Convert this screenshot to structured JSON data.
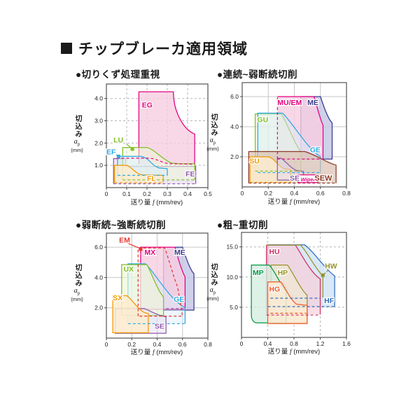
{
  "title": {
    "text": "チップブレーカ適用領域"
  },
  "chart_data": [
    {
      "type": "region-map",
      "id": "chip-control",
      "subtitle": "●切りくず処理重視",
      "xlabel": {
        "pre": "送り量",
        "it": "f",
        "post": "(mm/rev)"
      },
      "ylabel": {
        "main": "切込み",
        "sym": "a",
        "sub": "p",
        "unit": "(mm)"
      },
      "xlim": [
        0,
        0.5
      ],
      "ylim": [
        0,
        4.65
      ],
      "xticks": {
        "values": [
          0,
          0.1,
          0.2,
          0.3,
          0.4,
          0.5
        ],
        "labels": [
          "0",
          "0.1",
          "0.2",
          "0.3",
          "0.4",
          "0.5"
        ]
      },
      "yticks": {
        "values": [
          1.0,
          2.0,
          3.0,
          4.0
        ],
        "labels": [
          "1.0",
          "2.0",
          "3.0",
          "4.0"
        ]
      },
      "grid": "dashed",
      "regions": [
        {
          "name": "EG",
          "stroke": "#e4007f",
          "fill": "rgba(246,205,225,0.8)",
          "path": "M .16 1.05 L .16 4.3 L .33 4.3 C .33 3.4 .38 2.6 .435 2.4 L .435 1.05 Z",
          "spath": "M .435 1.05 L .435 2.4 C .38 2.6 .33 3.4 .33 4.3 L .16 4.3 L .16 1.05"
        },
        {
          "name": "FE",
          "stroke": "#8f5ba8",
          "fill": "rgba(228,217,238,0.65)",
          "path": "M .035 .17 L .035 1.3 L .095 1.3 L .095 .95 L .44 .95 L .44 .17 Z",
          "spath": "M .44 .17 L .44 .95 L .095 .95 L .095 1.3 L .035 1.3 L .035 .17"
        },
        {
          "name": "LU",
          "stroke": "#7fbf26",
          "fill": "rgba(238,246,215,0.55)",
          "path": "M .08 .35 L .08 1.8 L .2 1.8 C .24 1.7 .27 1.3 .32 1.1 L .36 1.07 L .435 1.07 L .435 .35 Z",
          "spath": "M .435 .35 L .435 1.07 L .36 1.07 L .32 1.1 C .27 1.3 .24 1.7 .2 1.8 L .08 1.8 L .08 .35"
        },
        {
          "name": "EF",
          "stroke": "#2ca9e1",
          "fill": "rgba(216,238,250,0.5)",
          "path": "M .055 .55 L .055 1.4 L .17 1.4 C .21 1.35 .22 1.0 .26 .88 L .3 .85 L .3 .55 Z",
          "spath": "M .3 .55 L .3 .85 L .26 .88 C .22 1.0 .21 1.35 .17 1.4 L .055 1.4 L .055 .55"
        },
        {
          "name": "FL",
          "stroke": "#f39800",
          "fill": "rgba(253,236,206,0.8)",
          "path": "M .04 .22 L .04 1.0 L .1 1.0 C .13 .9 .14 .62 .18 .57 L .28 .55 L .28 .22 Z",
          "spath": "M .28 .22 L .28 .55 L .18 .57 C .14 .62 .13 .9 .1 1.0 L .04 1.0 L .04 .22"
        }
      ],
      "extra_lines": [
        {
          "stroke": "#e4007f",
          "path": "M .05 1.32 L .21 1.32 C .25 1.3 .27 1.12 .31 1.07 L .435 1.05"
        },
        {
          "stroke": "#7fbf26",
          "path": "M .08 .35 L .435 .35"
        },
        {
          "stroke": "#2ca9e1",
          "path": "M .055 .55 L .3 .55"
        },
        {
          "stroke": "#f39800",
          "path": "M .04 .22 L .28 .22"
        },
        {
          "stroke": "#8f5ba8",
          "path": "M .035 .17 L .44 .17"
        }
      ],
      "labels": [
        {
          "text": "EG",
          "x": 0.175,
          "y": 3.6,
          "color": "#e4007f"
        },
        {
          "text": "LU",
          "x": 0.035,
          "y": 2.02,
          "color": "#7fbf26"
        },
        {
          "text": "EF",
          "x": 0.0,
          "y": 1.5,
          "color": "#2ca9e1"
        },
        {
          "text": "FL",
          "x": 0.2,
          "y": 0.3,
          "color": "#f39800"
        },
        {
          "text": "FE",
          "x": 0.39,
          "y": 0.5,
          "color": "#8f5ba8"
        }
      ],
      "leaders": [
        {
          "color": "#7fbf26",
          "x1": 0.1,
          "y1": 1.95,
          "x2": 0.125,
          "y2": 1.76,
          "marker": [
            0.128,
            1.73
          ]
        },
        {
          "color": "#2ca9e1",
          "x1": 0.048,
          "y1": 1.47,
          "x2": 0.058,
          "y2": 1.42,
          "marker": [
            0.06,
            1.4
          ]
        }
      ]
    },
    {
      "type": "region-map",
      "id": "continuous-light-interrupted",
      "subtitle": "●連続~弱断続切削",
      "xlabel": {
        "pre": "送り量",
        "it": "f",
        "post": "(mm/rev)"
      },
      "ylabel": {
        "main": "切込み",
        "sym": "a",
        "sub": "p",
        "unit": "(mm)"
      },
      "xlim": [
        0,
        0.8
      ],
      "ylim": [
        0,
        6.93
      ],
      "xticks": {
        "values": [
          0,
          0.2,
          0.4,
          0.6,
          0.8
        ],
        "labels": [
          "0",
          "0.2",
          "0.4",
          "0.6",
          "0.8"
        ]
      },
      "yticks": {
        "values": [
          2.0,
          4.0,
          6.0
        ],
        "labels": [
          "2.0",
          "4.0",
          "6.0"
        ]
      },
      "grid": "solid",
      "regions": [
        {
          "name": "ME",
          "stroke": "#3a3a8c",
          "fill": "rgba(199,200,230,0.85)",
          "path": "M .45 1.85 L .45 6.0 L .6 6.0 C .63 5.2 .66 4.5 .69 4.25 L .69 1.85 Z"
        },
        {
          "name": "MU/EM",
          "stroke": "#e4007f",
          "fill": "rgba(246,205,225,0.8)",
          "path": "M .27 1.85 L .27 6.0 L .55 6.0 C .58 5.2 .6 4.4 .62 4.1 L .62 1.85 Z",
          "spath": "M .27 6.0 L .55 6.0 C .58 5.2 .6 4.4 .62 4.1 L .62 1.85"
        },
        {
          "name": "GU",
          "stroke": "#7fbf26",
          "fill": "rgba(238,246,215,0.6)",
          "path": "M .1 1.05 L .1 4.85 L .3 4.85 C .34 4.3 .4 2.9 .45 2.3 L .45 1.05 Z",
          "spath": "M .1 1.05 L .1 4.85 L .3 4.85 C .34 4.3 .4 2.9 .45 2.3 L .45 1.05"
        },
        {
          "name": "GE",
          "stroke": "#2ca9e1",
          "fill": "rgba(216,238,250,0.45)",
          "path": "M .12 .95 L .12 4.9 L .31 4.9 C .4 4.1 .5 2.55 .6 2.0 L .6 .95 Z",
          "spath": "M .12 .95 L .12 4.9 L .31 4.9 C .4 4.1 .5 2.55 .6 2.0 L .6 .95"
        },
        {
          "name": "SEW",
          "stroke": "#8c3b28",
          "fill": "rgba(220,191,176,0.7)",
          "path": "M .05 .25 L .05 2.35 L .48 2.35 C .56 2.15 .63 1.7 .7 1.5 L .72 1.45 L .72 .25 Z",
          "spath": "M .05 .25 L .05 2.35 L .48 2.35 C .56 2.15 .63 1.7 .7 1.5 L .72 1.45 L .72 .25"
        },
        {
          "name": "SU",
          "stroke": "#f39800",
          "fill": "rgba(253,236,206,0.8)",
          "path": "M .06 .3 L .06 2.0 L .2 2.0 C .25 1.9 .27 1.4 .32 1.2 L .37 1.15 L .37 .3 Z",
          "spath": "M .06 .3 L .06 2.0 L .2 2.0 C .25 1.9 .27 1.4 .32 1.2 L .37 1.15 L .37 .3"
        },
        {
          "name": "SE",
          "stroke": "#8f5ba8",
          "fill": "rgba(228,217,238,0.5)",
          "path": "M .27 .45 L .27 1.9 L .3 1.9 C .34 1.65 .37 1.25 .42 1.08 L .47 1.03 L .47 .45 Z"
        }
      ],
      "extra_lines": [
        {
          "stroke": "#e4007f",
          "path": "M .27 1.85 L .27 6.0"
        },
        {
          "stroke": "#e4007f",
          "path": "M .27 1.85 L .62 1.85"
        },
        {
          "stroke": "#7fbf26",
          "path": "M .1 1.05 L .45 1.05"
        },
        {
          "stroke": "#2ca9e1",
          "path": "M .12 .95 L .6 .95"
        },
        {
          "stroke": "#8c3b28",
          "path": "M .05 .25 L .72 .25"
        },
        {
          "stroke": "#f39800",
          "path": "M .06 .3 L .37 .3"
        }
      ],
      "labels": [
        {
          "text": "GU",
          "x": 0.115,
          "y": 4.3,
          "color": "#7fbf26"
        },
        {
          "text": "MU/EM",
          "x": 0.27,
          "y": 5.45,
          "color": "#e4007f"
        },
        {
          "text": "ME",
          "x": 0.5,
          "y": 5.45,
          "color": "#3a3a8c"
        },
        {
          "text": "GE",
          "x": 0.52,
          "y": 2.3,
          "color": "#2ca9e1"
        },
        {
          "text": "SU",
          "x": 0.055,
          "y": 1.55,
          "color": "#f39800"
        },
        {
          "text": "SE",
          "x": 0.365,
          "y": 0.42,
          "color": "#8f5ba8"
        },
        {
          "text": "SEW",
          "x": 0.555,
          "y": 0.42,
          "color": "#8c3b28",
          "size": 11
        }
      ],
      "leaders": [],
      "badge": {
        "text": "Wiper",
        "x": 0.505,
        "y": 0.52,
        "color": "#e4007f"
      }
    },
    {
      "type": "region-map",
      "id": "light-heavy-interrupted",
      "subtitle": "●弱断続~強断続切削",
      "xlabel": {
        "pre": "送り量",
        "it": "f",
        "post": "(mm/rev)"
      },
      "ylabel": {
        "main": "切込み",
        "sym": "a",
        "sub": "p",
        "unit": "(mm)"
      },
      "xlim": [
        0,
        0.8
      ],
      "ylim": [
        0,
        6.93
      ],
      "xticks": {
        "values": [
          0,
          0.2,
          0.4,
          0.6,
          0.8
        ],
        "labels": [
          "0",
          "0.2",
          "0.4",
          "0.6",
          "0.8"
        ]
      },
      "yticks": {
        "values": [
          2.0,
          4.0,
          6.0
        ],
        "labels": [
          "2.0",
          "4.0",
          "6.0"
        ]
      },
      "grid": "solid",
      "regions": [
        {
          "name": "ME",
          "stroke": "#3a3a8c",
          "fill": "rgba(199,200,230,0.85)",
          "path": "M .45 1.85 L .45 6.0 L .6 6.0 C .63 5.2 .66 4.5 .69 4.25 L .69 1.85 Z"
        },
        {
          "name": "MX",
          "stroke": "#e4007f",
          "fill": "rgba(246,205,225,0.8)",
          "path": "M .27 1.9 L .27 6.0 L .54 6.0 C .57 5.1 .6 4.3 .62 4.05 L .62 1.9 Z"
        },
        {
          "name": "GE",
          "stroke": "#2ca9e1",
          "fill": "rgba(216,238,250,0.45)",
          "path": "M .17 .95 L .17 4.9 L .31 4.9 C .4 4.1 .5 2.55 .62 2.0 L .62 .95 Z",
          "spath": "M .17 .95 L .17 4.9 L .31 4.9 C .4 4.1 .5 2.55 .62 2.0 L .62 .95"
        },
        {
          "name": "UX",
          "stroke": "#7fbf26",
          "fill": "rgba(238,246,215,0.6)",
          "path": "M .12 1.5 L .12 4.85 L .32 4.85 C .36 4.2 .4 3.2 .45 2.7 L .45 1.5 Z"
        },
        {
          "name": "SE",
          "stroke": "#8f5ba8",
          "fill": "rgba(228,217,238,0.45)",
          "path": "M .07 .32 L .07 1.95 L .3 1.95 C .35 1.78 .4 1.52 .45 1.44 L .47 1.4 L .47 .32 Z"
        },
        {
          "name": "SX",
          "stroke": "#f39800",
          "fill": "rgba(253,236,206,0.85)",
          "path": "M .05 .35 L .05 2.8 L .16 2.8 C .2 2.6 .24 1.95 .3 1.68 L .33 1.62 L .33 .35 Z"
        },
        {
          "name": "EM",
          "stroke": "#e8382f",
          "fill": "none",
          "dash": true,
          "path": "M .25 1.45 L .25 5.95 L .46 5.95 C .5 5.0 .53 4.0 .56 3.4 C .58 2.6 .59 1.9 .6 1.45 Z"
        }
      ],
      "extra_lines": [
        {
          "stroke": "#8f5ba8",
          "path": "M .47 1.95 L .62 1.95"
        },
        {
          "stroke": "#2ca9e1",
          "path": "M .17 .95 L .62 .95"
        }
      ],
      "labels": [
        {
          "text": "EM",
          "x": 0.1,
          "y": 6.3,
          "color": "#e8382f"
        },
        {
          "text": "MX",
          "x": 0.3,
          "y": 5.5,
          "color": "#e4007f"
        },
        {
          "text": "ME",
          "x": 0.535,
          "y": 5.5,
          "color": "#3a3a8c"
        },
        {
          "text": "UX",
          "x": 0.135,
          "y": 4.4,
          "color": "#7fbf26"
        },
        {
          "text": "SX",
          "x": 0.05,
          "y": 2.5,
          "color": "#f39800"
        },
        {
          "text": "GE",
          "x": 0.53,
          "y": 2.4,
          "color": "#2ca9e1"
        },
        {
          "text": "SE",
          "x": 0.38,
          "y": 0.62,
          "color": "#8f5ba8"
        }
      ],
      "leaders": [
        {
          "color": "#e8382f",
          "x1": 0.17,
          "y1": 6.25,
          "x2": 0.265,
          "y2": 5.92,
          "marker": [
            0.27,
            5.87
          ]
        }
      ]
    },
    {
      "type": "region-map",
      "id": "rough-heavy",
      "subtitle": "●粗~重切削",
      "xlabel": {
        "pre": "送り量",
        "it": "f",
        "post": "(mm/rev)"
      },
      "ylabel": {
        "main": "切込み",
        "sym": "a",
        "sub": "p",
        "unit": "(mm)"
      },
      "xlim": [
        0,
        1.6
      ],
      "ylim": [
        0,
        17.4
      ],
      "xticks": {
        "values": [
          0,
          0.4,
          0.8,
          1.2,
          1.6
        ],
        "labels": [
          "0",
          "0.4",
          "0.8",
          "1.2",
          "1.6"
        ]
      },
      "yticks": {
        "values": [
          5.0,
          10.0,
          15.0
        ],
        "labels": [
          "5.0",
          "10.0",
          "15.0"
        ]
      },
      "grid": "dashed",
      "regions": [
        {
          "name": "HF",
          "stroke": "#2e6fba",
          "fill": "rgba(207,226,244,0.8)",
          "path": "M .4 5.1 L .4 15.35 L .96 15.35 C 1.1 14.3 1.28 11.2 1.42 10.2 L 1.42 5.1 Z",
          "spath": "M .4 5.1 L .4 15.35 L .96 15.35 C 1.1 14.3 1.28 11.2 1.42 10.2 L 1.42 5.1"
        },
        {
          "name": "HU",
          "stroke": "#cf2d60",
          "fill": "rgba(248,206,220,0.7)",
          "path": "M .38 3.8 L .38 15.3 L .82 15.3 C .9 14.1 1.05 10.7 1.2 9.7 L 1.2 3.8 Z",
          "spath": "M .38 3.8 L .38 15.3 L .82 15.3 C .9 14.1 1.05 10.7 1.2 9.7 L 1.2 3.8"
        },
        {
          "name": "HP",
          "stroke": "#97932a",
          "fill": "rgba(240,238,206,0.55)",
          "path": "M .45 2.4 L .45 12.0 L .7 12.0 C .78 10.9 .9 7.9 1.0 7.0 L 1.0 2.4 Z"
        },
        {
          "name": "MP",
          "stroke": "#009944",
          "fill": "rgba(214,238,224,0.8)",
          "path": "M .24 2.4 C .18 2.4 .15 3.0 .15 3.7 L .15 12.0 L .42 12.0 C .5 11.2 .6 8.6 .68 7.6 L .68 2.4 Z"
        },
        {
          "name": "HG",
          "stroke": "#ef5a28",
          "fill": "rgba(253,234,210,0.85)",
          "path": "M .4 2.3 L .4 9.2 L .6 9.2 C .66 8.4 .74 6.2 .84 5.5 L 1.0 5.3 L 1.0 2.3 Z"
        },
        {
          "name": "HW",
          "stroke": "#97932a",
          "fill": "none",
          "path": "M .38 15.3 L .9 15.3 C 1.0 14.2 1.13 11.3 1.24 10.2 L 1.24 6.6"
        }
      ],
      "extra_lines": [
        {
          "stroke": "#2e6fba",
          "path": "M .4 5.1 L 1.42 5.1"
        },
        {
          "stroke": "#2e6fba",
          "path": "M .44 6.5 L 1.2 6.5"
        },
        {
          "stroke": "#ef5a28",
          "path": "M .44 4.0 L .99 4.0"
        },
        {
          "stroke": "#cf2d60",
          "path": "M .38 3.7 L 1.2 3.7"
        }
      ],
      "labels": [
        {
          "text": "HU",
          "x": 0.42,
          "y": 13.8,
          "color": "#cf2d60"
        },
        {
          "text": "MP",
          "x": 0.17,
          "y": 10.3,
          "color": "#009944"
        },
        {
          "text": "HP",
          "x": 0.55,
          "y": 10.3,
          "color": "#97932a"
        },
        {
          "text": "HG",
          "x": 0.42,
          "y": 7.6,
          "color": "#ef5a28"
        },
        {
          "text": "HW",
          "x": 1.27,
          "y": 11.4,
          "color": "#97932a"
        },
        {
          "text": "HF",
          "x": 1.26,
          "y": 5.7,
          "color": "#2e6fba"
        }
      ],
      "leaders": [
        {
          "color": "#97932a",
          "dash": true,
          "x1": 1.32,
          "y1": 11.1,
          "x2": 1.26,
          "y2": 10.5,
          "marker": [
            1.24,
            10.3
          ]
        }
      ]
    }
  ]
}
